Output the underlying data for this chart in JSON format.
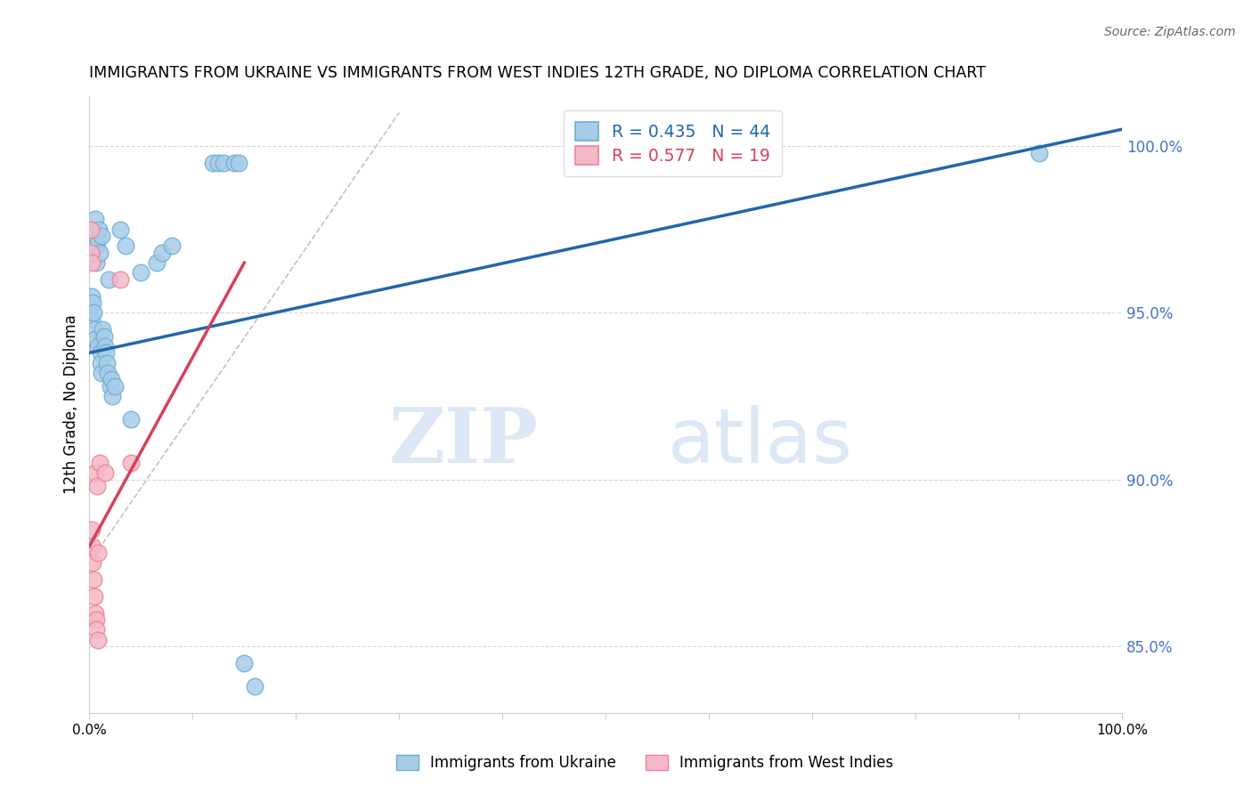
{
  "title": "IMMIGRANTS FROM UKRAINE VS IMMIGRANTS FROM WEST INDIES 12TH GRADE, NO DIPLOMA CORRELATION CHART",
  "source": "Source: ZipAtlas.com",
  "ylabel": "12th Grade, No Diploma",
  "ylabel_right_ticks": [
    100.0,
    95.0,
    90.0,
    85.0
  ],
  "ylabel_right_labels": [
    "100.0%",
    "95.0%",
    "90.0%",
    "85.0%"
  ],
  "xlim": [
    0.0,
    100.0
  ],
  "ylim": [
    83.0,
    101.5
  ],
  "legend_blue_r": "R = 0.435",
  "legend_blue_n": "N = 44",
  "legend_pink_r": "R = 0.577",
  "legend_pink_n": "N = 19",
  "legend_blue_label": "Immigrants from Ukraine",
  "legend_pink_label": "Immigrants from West Indies",
  "blue_scatter_color": "#a8cce8",
  "pink_scatter_color": "#f4b8c8",
  "blue_edge_color": "#6aaed6",
  "pink_edge_color": "#f08090",
  "blue_line_color": "#2166ac",
  "pink_line_color": "#d6405a",
  "r_blue_text_color": "#2166ac",
  "r_pink_text_color": "#d6405a",
  "watermark_zip": "ZIP",
  "watermark_atlas": "atlas",
  "watermark_color": "#dce8f5",
  "right_axis_color": "#4472c4",
  "grid_color": "#cccccc",
  "background_color": "#ffffff",
  "ukraine_x": [
    0.15,
    0.2,
    0.25,
    0.3,
    0.4,
    0.5,
    0.55,
    0.6,
    0.65,
    0.7,
    0.8,
    0.85,
    0.9,
    1.0,
    1.05,
    1.1,
    1.15,
    1.2,
    1.3,
    1.4,
    1.5,
    1.6,
    1.7,
    1.8,
    1.9,
    2.0,
    2.1,
    2.2,
    2.5,
    3.0,
    3.5,
    4.0,
    5.0,
    6.5,
    7.0,
    8.0,
    12.0,
    12.5,
    13.0,
    14.0,
    14.5,
    15.0,
    16.0,
    92.0
  ],
  "ukraine_y": [
    95.2,
    94.8,
    95.5,
    95.3,
    95.0,
    94.5,
    97.8,
    94.2,
    96.5,
    97.0,
    97.2,
    94.0,
    97.5,
    96.8,
    93.8,
    93.5,
    93.2,
    97.3,
    94.5,
    94.3,
    94.0,
    93.8,
    93.5,
    93.2,
    96.0,
    92.8,
    93.0,
    92.5,
    92.8,
    97.5,
    97.0,
    91.8,
    96.2,
    96.5,
    96.8,
    97.0,
    99.5,
    99.5,
    99.5,
    99.5,
    99.5,
    84.5,
    83.8,
    99.8
  ],
  "westindies_x": [
    0.1,
    0.15,
    0.2,
    0.25,
    0.3,
    0.35,
    0.4,
    0.5,
    0.55,
    0.6,
    0.65,
    0.7,
    0.75,
    0.8,
    0.85,
    1.0,
    1.5,
    3.0,
    4.0
  ],
  "westindies_y": [
    97.5,
    96.8,
    96.5,
    88.5,
    88.0,
    87.5,
    87.0,
    86.5,
    90.2,
    86.0,
    85.8,
    85.5,
    89.8,
    85.2,
    87.8,
    90.5,
    90.2,
    96.0,
    90.5
  ],
  "blue_line_x0": 0.0,
  "blue_line_y0": 93.8,
  "blue_line_x1": 100.0,
  "blue_line_y1": 100.5,
  "pink_line_x0": 0.0,
  "pink_line_y0": 88.0,
  "pink_line_x1": 15.0,
  "pink_line_y1": 96.5
}
